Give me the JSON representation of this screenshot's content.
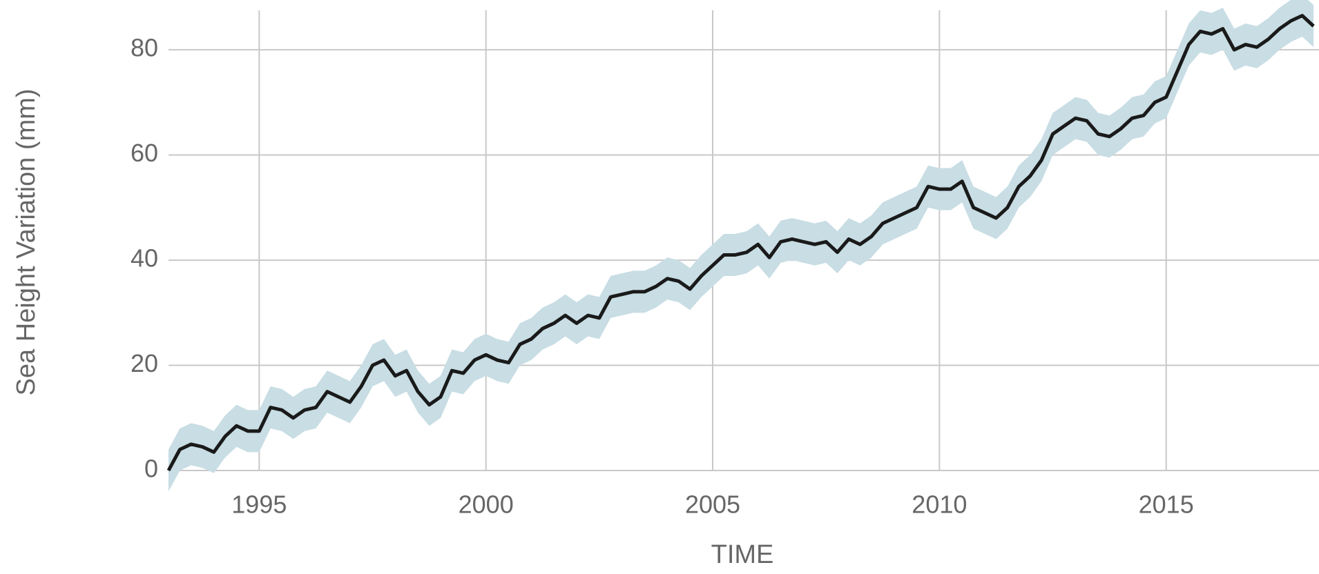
{
  "chart_data": {
    "type": "line",
    "title_y": "Sea Height Variation (mm)",
    "title_x": "TIME",
    "x": [
      1993,
      1993.25,
      1993.5,
      1993.75,
      1994,
      1994.25,
      1994.5,
      1994.75,
      1995,
      1995.25,
      1995.5,
      1995.75,
      1996,
      1996.25,
      1996.5,
      1996.75,
      1997,
      1997.25,
      1997.5,
      1997.75,
      1998,
      1998.25,
      1998.5,
      1998.75,
      1999,
      1999.25,
      1999.5,
      1999.75,
      2000,
      2000.25,
      2000.5,
      2000.75,
      2001,
      2001.25,
      2001.5,
      2001.75,
      2002,
      2002.25,
      2002.5,
      2002.75,
      2003,
      2003.25,
      2003.5,
      2003.75,
      2004,
      2004.25,
      2004.5,
      2004.75,
      2005,
      2005.25,
      2005.5,
      2005.75,
      2006,
      2006.25,
      2006.5,
      2006.75,
      2007,
      2007.25,
      2007.5,
      2007.75,
      2008,
      2008.25,
      2008.5,
      2008.75,
      2009,
      2009.25,
      2009.5,
      2009.75,
      2010,
      2010.25,
      2010.5,
      2010.75,
      2011,
      2011.25,
      2011.5,
      2011.75,
      2012,
      2012.25,
      2012.5,
      2012.75,
      2013,
      2013.25,
      2013.5,
      2013.75,
      2014,
      2014.25,
      2014.5,
      2014.75,
      2015,
      2015.25,
      2015.5,
      2015.75,
      2016,
      2016.25,
      2016.5,
      2016.75,
      2017,
      2017.25,
      2017.5,
      2017.75,
      2018,
      2018.25
    ],
    "values": [
      0,
      4,
      5,
      4.5,
      3.5,
      6.5,
      8.5,
      7.5,
      7.5,
      12,
      11.5,
      10,
      11.5,
      12,
      15,
      14,
      13,
      16,
      20,
      21,
      18,
      19,
      15,
      12.5,
      14,
      19,
      18.5,
      21,
      22,
      21,
      20.5,
      24,
      25,
      27,
      28,
      29.5,
      28,
      29.5,
      29,
      33,
      33.5,
      34,
      34,
      35,
      36.5,
      36,
      34.5,
      37,
      39,
      41,
      41,
      41.5,
      43,
      40.5,
      43.5,
      44,
      43.5,
      43,
      43.5,
      41.5,
      44,
      43,
      44.5,
      47,
      48,
      49,
      50,
      54,
      53.5,
      53.5,
      55,
      50,
      49,
      48,
      50,
      54,
      56,
      59,
      64,
      65.5,
      67,
      66.5,
      64,
      63.5,
      65,
      67,
      67.5,
      70,
      71,
      76,
      81,
      83.5,
      83,
      84,
      80,
      81,
      80.5,
      82,
      84,
      85.5,
      86.5,
      84.5
    ],
    "uncertainty": 4,
    "color": "#1a1a1a",
    "band_color": "#c8dde4",
    "xlim": [
      1993,
      2018.37
    ],
    "ylim": [
      0,
      87.5
    ],
    "xticks": [
      1995,
      2000,
      2005,
      2010,
      2015
    ],
    "yticks": [
      0,
      20,
      40,
      60,
      80
    ],
    "grid": true
  }
}
